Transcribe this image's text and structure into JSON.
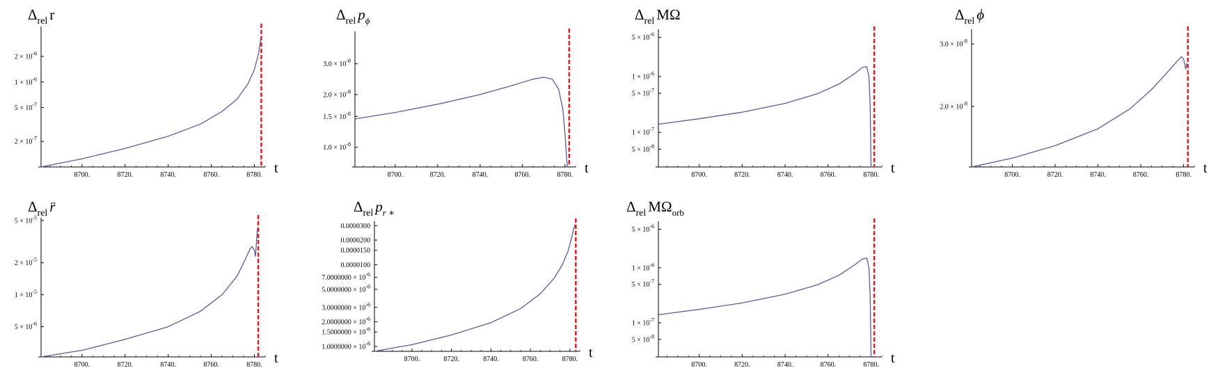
{
  "chart_data": [
    {
      "type": "line",
      "title": {
        "prefix": "Δ",
        "sub": "rel",
        "symbol": "r",
        "symbol_sub": ""
      },
      "xlabel": "t",
      "xlim": [
        8681,
        8785
      ],
      "ylim": [
        1e-07,
        4.5e-06
      ],
      "yscale": "log",
      "x_ticks": [
        {
          "v": 8700,
          "label": "8700."
        },
        {
          "v": 8720,
          "label": "8720."
        },
        {
          "v": 8740,
          "label": "8740."
        },
        {
          "v": 8760,
          "label": "8760."
        },
        {
          "v": 8780,
          "label": "8780."
        }
      ],
      "y_ticks": [
        {
          "v": 2e-07,
          "m": "2",
          "e": "-7"
        },
        {
          "v": 5e-07,
          "m": "5",
          "e": "-7"
        },
        {
          "v": 1e-06,
          "m": "1",
          "e": "-6"
        },
        {
          "v": 2e-06,
          "m": "2",
          "e": "-6"
        }
      ],
      "series": [
        {
          "color": "#5a5a9e",
          "points": [
            [
              8681,
              1e-07
            ],
            [
              8700,
              1.25e-07
            ],
            [
              8720,
              1.65e-07
            ],
            [
              8740,
              2.3e-07
            ],
            [
              8755,
              3.2e-07
            ],
            [
              8765,
              4.5e-07
            ],
            [
              8772,
              6.3e-07
            ],
            [
              8777,
              9.5e-07
            ],
            [
              8780,
              1.4e-06
            ],
            [
              8782,
              2.2e-06
            ],
            [
              8783,
              3.3e-06
            ]
          ]
        }
      ],
      "vline": {
        "x": 8783.2,
        "color": "#e41a1c"
      }
    },
    {
      "type": "line",
      "title": {
        "prefix": "Δ",
        "sub": "rel",
        "symbol": "p",
        "symbol_sub": "ϕ"
      },
      "xlabel": "t",
      "xlim": [
        8681,
        8785
      ],
      "ylim": [
        7.7e-09,
        4.6e-08
      ],
      "yscale": "log",
      "x_ticks": [
        {
          "v": 8700,
          "label": "8700."
        },
        {
          "v": 8720,
          "label": "8720."
        },
        {
          "v": 8740,
          "label": "8740."
        },
        {
          "v": 8760,
          "label": "8760."
        },
        {
          "v": 8780,
          "label": "8780."
        }
      ],
      "y_ticks": [
        {
          "v": 1e-08,
          "m": "1.0",
          "e": "-8"
        },
        {
          "v": 1.5e-08,
          "m": "1.5",
          "e": "-8"
        },
        {
          "v": 2e-08,
          "m": "2.0",
          "e": "-8"
        },
        {
          "v": 3e-08,
          "m": "3.0",
          "e": "-8"
        }
      ],
      "series": [
        {
          "color": "#5a5a9e",
          "points": [
            [
              8681,
              1.45e-08
            ],
            [
              8700,
              1.58e-08
            ],
            [
              8720,
              1.76e-08
            ],
            [
              8740,
              2e-08
            ],
            [
              8755,
              2.25e-08
            ],
            [
              8765,
              2.45e-08
            ],
            [
              8770,
              2.51e-08
            ],
            [
              8774,
              2.45e-08
            ],
            [
              8777,
              2.15e-08
            ],
            [
              8779,
              1.65e-08
            ],
            [
              8780,
              1.2e-08
            ],
            [
              8780.8,
              8.5e-09
            ],
            [
              8781.2,
              7.7e-09
            ]
          ]
        }
      ],
      "vline": {
        "x": 8782,
        "color": "#e41a1c"
      }
    },
    {
      "type": "line",
      "title": {
        "prefix": "Δ",
        "sub": "rel",
        "symbol": "MΩ",
        "symbol_sub": ""
      },
      "xlabel": "t",
      "xlim": [
        8681,
        8785
      ],
      "ylim": [
        2.4e-08,
        7e-06
      ],
      "yscale": "log",
      "x_ticks": [
        {
          "v": 8700,
          "label": "8700."
        },
        {
          "v": 8720,
          "label": "8720."
        },
        {
          "v": 8740,
          "label": "8740."
        },
        {
          "v": 8760,
          "label": "8760."
        },
        {
          "v": 8780,
          "label": "8780."
        }
      ],
      "y_ticks": [
        {
          "v": 5e-08,
          "m": "5",
          "e": "-8"
        },
        {
          "v": 1e-07,
          "m": "1",
          "e": "-7"
        },
        {
          "v": 5e-07,
          "m": "5",
          "e": "-7"
        },
        {
          "v": 1e-06,
          "m": "1",
          "e": "-6"
        },
        {
          "v": 5e-06,
          "m": "5",
          "e": "-6"
        }
      ],
      "series": [
        {
          "color": "#5a5a9e",
          "points": [
            [
              8681,
              1.4e-07
            ],
            [
              8700,
              1.75e-07
            ],
            [
              8720,
              2.3e-07
            ],
            [
              8740,
              3.3e-07
            ],
            [
              8755,
              4.9e-07
            ],
            [
              8765,
              7.3e-07
            ],
            [
              8772,
              1.1e-06
            ],
            [
              8776,
              1.45e-06
            ],
            [
              8778,
              1.5e-06
            ],
            [
              8779,
              1e-06
            ],
            [
              8779.6,
              3e-07
            ],
            [
              8780,
              2.4e-08
            ]
          ]
        }
      ],
      "vline": {
        "x": 8781.5,
        "color": "#e41a1c"
      }
    },
    {
      "type": "line",
      "title": {
        "prefix": "Δ",
        "sub": "rel",
        "symbol": "ϕ",
        "symbol_sub": ""
      },
      "xlabel": "t",
      "xlim": [
        8681,
        8785
      ],
      "ylim": [
        1.35e-08,
        3.3e-08
      ],
      "yscale": "log",
      "x_ticks": [
        {
          "v": 8700,
          "label": "8700."
        },
        {
          "v": 8720,
          "label": "8720."
        },
        {
          "v": 8740,
          "label": "8740."
        },
        {
          "v": 8760,
          "label": "8760."
        },
        {
          "v": 8780,
          "label": "8780."
        }
      ],
      "y_ticks": [
        {
          "v": 2e-08,
          "m": "2.0",
          "e": "-8"
        },
        {
          "v": 3e-08,
          "m": "3.0",
          "e": "-8"
        }
      ],
      "series": [
        {
          "color": "#5a5a9e",
          "points": [
            [
              8681,
              1.35e-08
            ],
            [
              8700,
              1.43e-08
            ],
            [
              8720,
              1.55e-08
            ],
            [
              8740,
              1.73e-08
            ],
            [
              8755,
              1.97e-08
            ],
            [
              8765,
              2.23e-08
            ],
            [
              8772,
              2.48e-08
            ],
            [
              8777,
              2.68e-08
            ],
            [
              8779,
              2.76e-08
            ],
            [
              8780,
              2.72e-08
            ],
            [
              8781,
              2.55e-08
            ],
            [
              8781.5,
              2.65e-08
            ]
          ]
        }
      ],
      "vline": {
        "x": 8782,
        "color": "#e41a1c"
      }
    },
    {
      "type": "line",
      "title": {
        "prefix": "Δ",
        "sub": "rel",
        "symbol": "r̈",
        "symbol_sub": ""
      },
      "xlabel": "t",
      "xlim": [
        8681,
        8785
      ],
      "ylim": [
        2.6e-06,
        5.3e-05
      ],
      "yscale": "log",
      "x_ticks": [
        {
          "v": 8700,
          "label": "8700."
        },
        {
          "v": 8720,
          "label": "8720."
        },
        {
          "v": 8740,
          "label": "8740."
        },
        {
          "v": 8760,
          "label": "8760."
        },
        {
          "v": 8780,
          "label": "8780."
        }
      ],
      "y_ticks": [
        {
          "v": 5e-06,
          "m": "5",
          "e": "-6"
        },
        {
          "v": 1e-05,
          "m": "1",
          "e": "-5"
        },
        {
          "v": 2e-05,
          "m": "2",
          "e": "-5"
        },
        {
          "v": 5e-05,
          "m": "5",
          "e": "-5"
        }
      ],
      "series": [
        {
          "color": "#5a5a9e",
          "points": [
            [
              8681,
              2.6e-06
            ],
            [
              8700,
              3e-06
            ],
            [
              8720,
              3.8e-06
            ],
            [
              8740,
              5e-06
            ],
            [
              8755,
              7e-06
            ],
            [
              8765,
              1e-05
            ],
            [
              8772,
              1.5e-05
            ],
            [
              8776,
              2.2e-05
            ],
            [
              8778,
              2.7e-05
            ],
            [
              8779,
              2.85e-05
            ],
            [
              8780,
              2.6e-05
            ],
            [
              8780.5,
              2.3e-05
            ],
            [
              8781,
              3.2e-05
            ],
            [
              8781.4,
              4.2e-05
            ]
          ]
        }
      ],
      "vline": {
        "x": 8781.8,
        "color": "#e41a1c"
      }
    },
    {
      "type": "line",
      "title": {
        "prefix": "Δ",
        "sub": "rel",
        "symbol": "p",
        "symbol_sub": "r ∗"
      },
      "xlabel": "t",
      "xlim": [
        8681,
        8785
      ],
      "ylim": [
        8.7e-07,
        3.4e-05
      ],
      "yscale": "log",
      "x_ticks": [
        {
          "v": 8700,
          "label": "8700."
        },
        {
          "v": 8720,
          "label": "8720."
        },
        {
          "v": 8740,
          "label": "8740."
        },
        {
          "v": 8760,
          "label": "8760."
        },
        {
          "v": 8780,
          "label": "8780."
        }
      ],
      "y_ticks": [
        {
          "v": 1e-06,
          "m": "1.0000000",
          "e": "-6"
        },
        {
          "v": 1.5e-06,
          "m": "1.5000000",
          "e": "-6"
        },
        {
          "v": 2e-06,
          "m": "2.0000000",
          "e": "-6"
        },
        {
          "v": 3e-06,
          "m": "3.0000000",
          "e": "-6"
        },
        {
          "v": 5e-06,
          "m": "5.0000000",
          "e": "-6"
        },
        {
          "v": 7e-06,
          "m": "7.0000000",
          "e": "-6"
        },
        {
          "v": 1e-05,
          "text": "0.0000100"
        },
        {
          "v": 1.5e-05,
          "text": "0.0000150"
        },
        {
          "v": 2e-05,
          "text": "0.0000200"
        },
        {
          "v": 3e-05,
          "text": "0.0000300"
        }
      ],
      "series": [
        {
          "color": "#5a5a9e",
          "points": [
            [
              8681,
              8.7e-07
            ],
            [
              8700,
              1.05e-06
            ],
            [
              8720,
              1.38e-06
            ],
            [
              8740,
              1.95e-06
            ],
            [
              8755,
              2.9e-06
            ],
            [
              8765,
              4.4e-06
            ],
            [
              8772,
              6.8e-06
            ],
            [
              8776,
              9.8e-06
            ],
            [
              8779,
              1.45e-05
            ],
            [
              8781,
              2.2e-05
            ],
            [
              8782.5,
              3.1e-05
            ]
          ]
        }
      ],
      "vline": {
        "x": 8783,
        "color": "#e41a1c"
      }
    },
    {
      "type": "line",
      "title": {
        "prefix": "Δ",
        "sub": "rel",
        "symbol": "MΩ",
        "symbol_sub": "orb"
      },
      "xlabel": "t",
      "xlim": [
        8681,
        8785
      ],
      "ylim": [
        2.4e-08,
        7e-06
      ],
      "yscale": "log",
      "x_ticks": [
        {
          "v": 8700,
          "label": "8700."
        },
        {
          "v": 8720,
          "label": "8720."
        },
        {
          "v": 8740,
          "label": "8740."
        },
        {
          "v": 8760,
          "label": "8760."
        },
        {
          "v": 8780,
          "label": "8780."
        }
      ],
      "y_ticks": [
        {
          "v": 5e-08,
          "m": "5",
          "e": "-8"
        },
        {
          "v": 1e-07,
          "m": "1",
          "e": "-7"
        },
        {
          "v": 5e-07,
          "m": "5",
          "e": "-7"
        },
        {
          "v": 1e-06,
          "m": "1",
          "e": "-6"
        },
        {
          "v": 5e-06,
          "m": "5",
          "e": "-6"
        }
      ],
      "series": [
        {
          "color": "#5a5a9e",
          "points": [
            [
              8681,
              1.4e-07
            ],
            [
              8700,
              1.75e-07
            ],
            [
              8720,
              2.3e-07
            ],
            [
              8740,
              3.3e-07
            ],
            [
              8755,
              4.9e-07
            ],
            [
              8765,
              7.3e-07
            ],
            [
              8772,
              1.1e-06
            ],
            [
              8776,
              1.45e-06
            ],
            [
              8778,
              1.5e-06
            ],
            [
              8779,
              1e-06
            ],
            [
              8779.6,
              3e-07
            ],
            [
              8780,
              2.4e-08
            ]
          ]
        }
      ],
      "vline": {
        "x": 8781.5,
        "color": "#e41a1c"
      }
    }
  ]
}
